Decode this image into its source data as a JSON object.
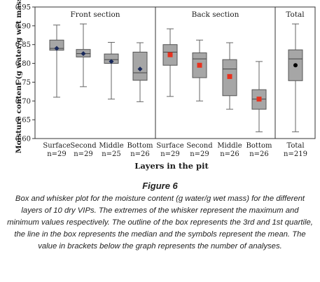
{
  "figure": {
    "title": "Figure 6",
    "caption": "Box and whisker plot for the moisture content (g water/g wet mass) for the different layers of 10 dry VIPs. The extremes of the whisker represent the maximum and minimum values respectively. The outline of the box represents the 3rd and 1st quartile, the line in the box represents the median and the symbols represent the mean. The value in brackets below the graph represents the number of analyses."
  },
  "chart_data": {
    "type": "box",
    "ylabel": "Moisture content (g water/g wet mass)",
    "xlabel": "Layers in the pit",
    "ylim": [
      0.6,
      0.95
    ],
    "yticks": [
      "0.60",
      "0.65",
      "0.70",
      "0.75",
      "0.80",
      "0.85",
      "0.90",
      "0.95"
    ],
    "grid": false,
    "sections": [
      "Front section",
      "Back section",
      "Total"
    ],
    "colors": {
      "box_fill": "#a6a6a6",
      "mean_front": "#1a2a5c",
      "mean_back": "#e8321f",
      "mean_total": "#000000"
    },
    "boxes": [
      {
        "category": "Surface",
        "n": "n=29",
        "section": "Front section",
        "min": 0.71,
        "q1": 0.835,
        "median": 0.84,
        "q3": 0.862,
        "max": 0.902,
        "mean": 0.84
      },
      {
        "category": "Second",
        "n": "n=29",
        "section": "Front section",
        "min": 0.738,
        "q1": 0.817,
        "median": 0.826,
        "q3": 0.837,
        "max": 0.905,
        "mean": 0.826
      },
      {
        "category": "Middle",
        "n": "n=25",
        "section": "Front section",
        "min": 0.705,
        "q1": 0.8,
        "median": 0.81,
        "q3": 0.825,
        "max": 0.856,
        "mean": 0.805
      },
      {
        "category": "Bottom",
        "n": "n=26",
        "section": "Front section",
        "min": 0.698,
        "q1": 0.755,
        "median": 0.775,
        "q3": 0.83,
        "max": 0.855,
        "mean": 0.785
      },
      {
        "category": "Surface",
        "n": "n=29",
        "section": "Back section",
        "min": 0.712,
        "q1": 0.795,
        "median": 0.83,
        "q3": 0.85,
        "max": 0.892,
        "mean": 0.823
      },
      {
        "category": "Second",
        "n": "n=29",
        "section": "Back section",
        "min": 0.7,
        "q1": 0.762,
        "median": 0.812,
        "q3": 0.828,
        "max": 0.862,
        "mean": 0.795
      },
      {
        "category": "Middle",
        "n": "n=26",
        "section": "Back section",
        "min": 0.678,
        "q1": 0.714,
        "median": 0.785,
        "q3": 0.81,
        "max": 0.855,
        "mean": 0.765
      },
      {
        "category": "Bottom",
        "n": "n=26",
        "section": "Back section",
        "min": 0.618,
        "q1": 0.678,
        "median": 0.705,
        "q3": 0.73,
        "max": 0.805,
        "mean": 0.705
      },
      {
        "category": "Total",
        "n": "n=219",
        "section": "Total",
        "min": 0.618,
        "q1": 0.754,
        "median": 0.812,
        "q3": 0.836,
        "max": 0.905,
        "mean": 0.795
      }
    ]
  }
}
